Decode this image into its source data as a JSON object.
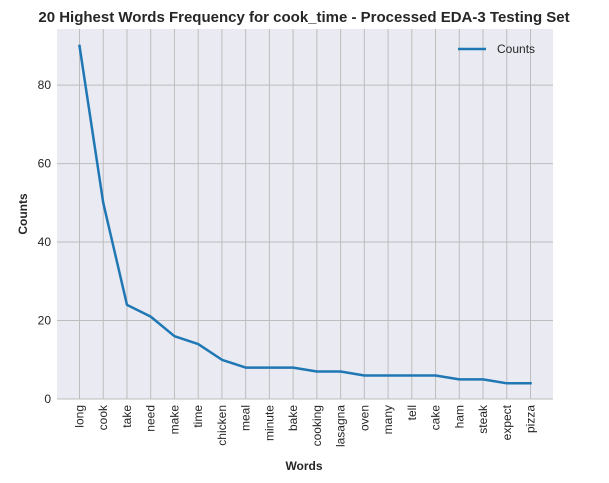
{
  "chart_data": {
    "type": "line",
    "title": "20 Highest Words Frequency for cook_time - Processed EDA-3 Testing Set",
    "xlabel": "Words",
    "ylabel": "Counts",
    "categories": [
      "long",
      "cook",
      "take",
      "need",
      "make",
      "time",
      "chicken",
      "meal",
      "minute",
      "bake",
      "cooking",
      "lasagna",
      "oven",
      "many",
      "tell",
      "cake",
      "ham",
      "steak",
      "expect",
      "pizza"
    ],
    "series": [
      {
        "name": "Counts",
        "color": "#1f77b4",
        "values": [
          90,
          50,
          24,
          21,
          16,
          14,
          10,
          8,
          8,
          8,
          7,
          7,
          6,
          6,
          6,
          6,
          5,
          5,
          4,
          4
        ]
      }
    ],
    "ylim": [
      0,
      94.3
    ],
    "yticks": [
      0,
      20,
      40,
      60,
      80
    ],
    "grid": true,
    "legend_position": "top-right",
    "colors": {
      "plot_background": "#eaeaf2",
      "grid": "#bdbdbd",
      "line": "#1f77b4"
    }
  }
}
